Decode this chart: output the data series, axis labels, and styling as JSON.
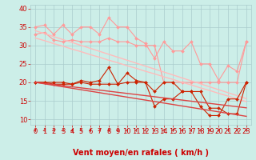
{
  "x": [
    0,
    1,
    2,
    3,
    4,
    5,
    6,
    7,
    8,
    9,
    10,
    11,
    12,
    13,
    14,
    15,
    16,
    17,
    18,
    19,
    20,
    21,
    22,
    23
  ],
  "series": [
    {
      "name": "rafales_high",
      "color": "#ff9999",
      "lw": 0.8,
      "marker": "D",
      "ms": 2.0,
      "y": [
        35.0,
        35.5,
        33.0,
        35.5,
        33.0,
        35.0,
        35.0,
        33.0,
        37.5,
        35.0,
        35.0,
        32.0,
        30.5,
        26.5,
        31.0,
        28.5,
        28.5,
        31.0,
        25.0,
        25.0,
        20.5,
        24.5,
        23.0,
        31.0
      ]
    },
    {
      "name": "rafales_mid",
      "color": "#ff9999",
      "lw": 0.8,
      "marker": "D",
      "ms": 2.0,
      "y": [
        33.0,
        33.5,
        31.5,
        31.0,
        31.5,
        31.0,
        31.0,
        31.0,
        32.0,
        31.0,
        31.0,
        30.0,
        30.0,
        30.0,
        20.0,
        20.0,
        20.0,
        20.0,
        20.0,
        20.0,
        20.0,
        20.0,
        20.0,
        31.0
      ]
    },
    {
      "name": "trend_upper",
      "color": "#ffbbbb",
      "lw": 1.0,
      "marker": null,
      "ms": 0,
      "y": [
        34.0,
        33.2,
        32.4,
        31.6,
        30.8,
        30.0,
        29.2,
        28.4,
        27.6,
        26.8,
        26.0,
        25.2,
        24.4,
        23.6,
        22.8,
        22.0,
        21.2,
        20.4,
        19.6,
        18.8,
        18.0,
        17.2,
        16.4,
        15.6
      ]
    },
    {
      "name": "trend_lower",
      "color": "#ffbbbb",
      "lw": 1.0,
      "marker": null,
      "ms": 0,
      "y": [
        32.0,
        31.3,
        30.5,
        29.8,
        29.0,
        28.3,
        27.5,
        26.8,
        26.0,
        25.3,
        24.5,
        23.8,
        23.0,
        22.3,
        21.5,
        20.8,
        20.0,
        19.3,
        18.5,
        17.8,
        17.0,
        16.3,
        15.5,
        14.8
      ]
    },
    {
      "name": "moyen_high",
      "color": "#cc2200",
      "lw": 0.8,
      "marker": "D",
      "ms": 2.0,
      "y": [
        20.0,
        20.0,
        20.0,
        20.0,
        19.5,
        20.5,
        20.0,
        20.5,
        24.0,
        19.5,
        22.5,
        20.5,
        20.0,
        17.5,
        20.0,
        20.0,
        17.5,
        17.5,
        17.5,
        13.0,
        13.0,
        11.5,
        11.5,
        20.0
      ]
    },
    {
      "name": "moyen_mid",
      "color": "#cc2200",
      "lw": 0.8,
      "marker": "D",
      "ms": 2.0,
      "y": [
        20.0,
        20.0,
        19.5,
        19.5,
        19.5,
        20.0,
        19.5,
        19.5,
        19.5,
        19.5,
        20.0,
        20.0,
        20.0,
        13.5,
        15.5,
        15.5,
        17.5,
        17.5,
        13.5,
        11.0,
        11.0,
        15.5,
        15.5,
        20.0
      ]
    },
    {
      "name": "trend_moyen_upper",
      "color": "#dd4444",
      "lw": 1.0,
      "marker": null,
      "ms": 0,
      "y": [
        20.0,
        19.7,
        19.4,
        19.1,
        18.8,
        18.5,
        18.2,
        17.9,
        17.6,
        17.3,
        17.0,
        16.7,
        16.4,
        16.1,
        15.8,
        15.5,
        15.2,
        14.9,
        14.6,
        14.3,
        14.0,
        13.7,
        13.4,
        13.1
      ]
    },
    {
      "name": "trend_moyen_lower",
      "color": "#dd4444",
      "lw": 1.0,
      "marker": null,
      "ms": 0,
      "y": [
        20.0,
        19.6,
        19.2,
        18.8,
        18.4,
        18.0,
        17.6,
        17.2,
        16.8,
        16.4,
        16.0,
        15.6,
        15.2,
        14.8,
        14.4,
        14.0,
        13.6,
        13.2,
        12.8,
        12.4,
        12.0,
        11.6,
        11.2,
        10.8
      ]
    }
  ],
  "xlabel": "Vent moyen/en rafales ( km/h )",
  "ylabel_ticks": [
    10,
    15,
    20,
    25,
    30,
    35,
    40
  ],
  "xlim": [
    -0.5,
    23.5
  ],
  "ylim": [
    8.5,
    41
  ],
  "bg_color": "#cceee8",
  "grid_color": "#aacccc",
  "tick_color": "#cc0000",
  "label_color": "#cc0000",
  "xlabel_fontsize": 7,
  "tick_fontsize": 6,
  "arrow_color": "#cc0000"
}
